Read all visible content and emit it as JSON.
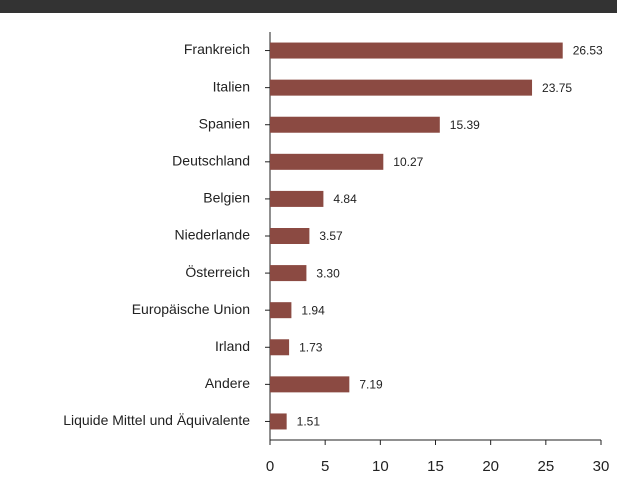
{
  "chart_data": {
    "type": "bar",
    "orientation": "horizontal",
    "categories": [
      "Frankreich",
      "Italien",
      "Spanien",
      "Deutschland",
      "Belgien",
      "Niederlande",
      "Österreich",
      "Europäische Union",
      "Irland",
      "Andere",
      "Liquide Mittel und Äquivalente"
    ],
    "values": [
      26.53,
      23.75,
      15.39,
      10.27,
      4.84,
      3.57,
      3.3,
      1.94,
      1.73,
      7.19,
      1.51
    ],
    "value_labels": [
      "26.53",
      "23.75",
      "15.39",
      "10.27",
      "4.84",
      "3.57",
      "3.30",
      "1.94",
      "1.73",
      "7.19",
      "1.51"
    ],
    "color": "#8b4a42",
    "xlim": [
      0,
      30
    ],
    "xticks": [
      0,
      5,
      10,
      15,
      20,
      25,
      30
    ],
    "grid": false
  }
}
